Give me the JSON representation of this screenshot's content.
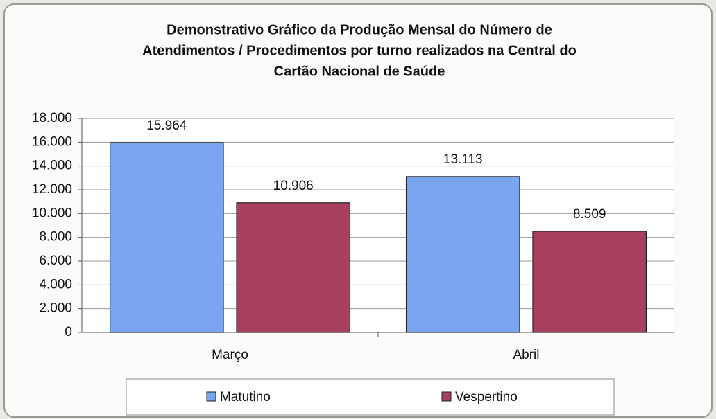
{
  "chart_data": {
    "type": "bar",
    "title": [
      "Demonstrativo Gráfico da Produção Mensal do Número de",
      "Atendimentos / Procedimentos por turno realizados na Central do",
      "Cartão Nacional de Saúde"
    ],
    "categories": [
      "Março",
      "Abril"
    ],
    "series": [
      {
        "name": "Matutino",
        "color": "#7aa5ee",
        "values": [
          15964,
          13113
        ],
        "value_labels": [
          "15.964",
          "13.113"
        ]
      },
      {
        "name": "Vespertino",
        "color": "#a8405f",
        "values": [
          10906,
          8509
        ],
        "value_labels": [
          "10.906",
          "8.509"
        ]
      }
    ],
    "ylim": [
      0,
      18000
    ],
    "yticks": [
      0,
      {
        "value": 2000,
        "label": "2.000"
      },
      {
        "value": 4000,
        "label": "4.000"
      },
      {
        "value": 6000,
        "label": "6.000"
      },
      {
        "value": 8000,
        "label": "8.000"
      },
      {
        "value": 10000,
        "label": "10.000"
      },
      {
        "value": 12000,
        "label": "12.000"
      },
      {
        "value": 14000,
        "label": "14.000"
      },
      {
        "value": 16000,
        "label": "16.000"
      },
      {
        "value": 18000,
        "label": "18.000"
      }
    ],
    "grid": true,
    "legend": "bottom"
  }
}
